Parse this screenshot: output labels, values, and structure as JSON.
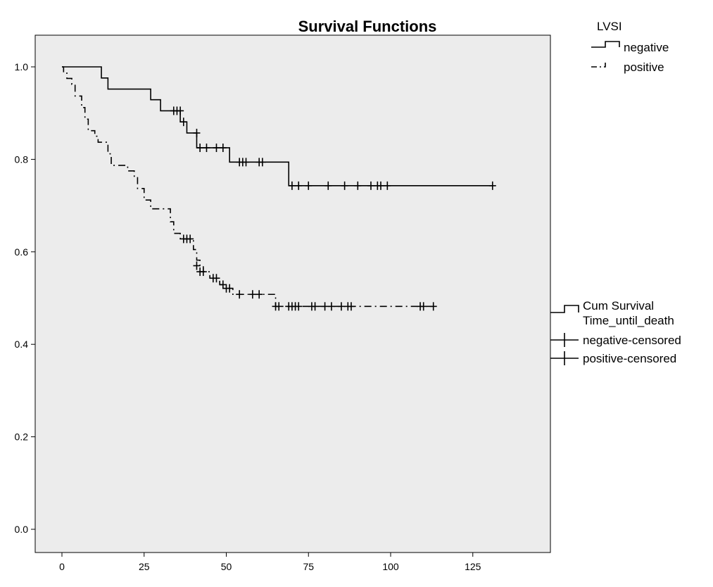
{
  "chart_data": {
    "type": "line",
    "title": "Survival Functions",
    "xlabel": "",
    "ylabel": "",
    "xlim": [
      -10,
      148
    ],
    "ylim": [
      -0.05,
      1.06
    ],
    "xticks": [
      0,
      25,
      50,
      75,
      100,
      125
    ],
    "yticks": [
      0.0,
      0.2,
      0.4,
      0.6,
      0.8,
      1.0
    ],
    "xtick_labels": [
      "0",
      "25",
      "50",
      "75",
      "100",
      "125"
    ],
    "ytick_labels": [
      "0.0",
      "0.2",
      "0.4",
      "0.6",
      "0.8",
      "1.0"
    ],
    "background": "#ececec",
    "grid": false,
    "legend_position": "right",
    "legend": {
      "group_title": "LVSI",
      "groups": [
        "negative",
        "positive"
      ],
      "style_title_line1": "Cum Survival",
      "style_title_line2": "Time_until_death",
      "styles": [
        "negative-censored",
        "positive-censored"
      ]
    },
    "series": [
      {
        "name": "negative",
        "line_style": "solid",
        "color": "#000000",
        "steps": [
          [
            0,
            1.0
          ],
          [
            12,
            0.976
          ],
          [
            14,
            0.952
          ],
          [
            27,
            0.929
          ],
          [
            30,
            0.905
          ],
          [
            36,
            0.881
          ],
          [
            38,
            0.857
          ],
          [
            41,
            0.825
          ],
          [
            51,
            0.794
          ],
          [
            69,
            0.743
          ],
          [
            131,
            0.743
          ]
        ],
        "censored": [
          [
            34,
            0.905
          ],
          [
            35,
            0.905
          ],
          [
            36,
            0.905
          ],
          [
            37,
            0.881
          ],
          [
            41,
            0.857
          ],
          [
            42,
            0.825
          ],
          [
            44,
            0.825
          ],
          [
            47,
            0.825
          ],
          [
            49,
            0.825
          ],
          [
            54,
            0.794
          ],
          [
            55,
            0.794
          ],
          [
            56,
            0.794
          ],
          [
            60,
            0.794
          ],
          [
            61,
            0.794
          ],
          [
            70,
            0.743
          ],
          [
            72,
            0.743
          ],
          [
            75,
            0.743
          ],
          [
            81,
            0.743
          ],
          [
            86,
            0.743
          ],
          [
            90,
            0.743
          ],
          [
            94,
            0.743
          ],
          [
            96,
            0.743
          ],
          [
            97,
            0.743
          ],
          [
            99,
            0.743
          ],
          [
            131,
            0.743
          ]
        ]
      },
      {
        "name": "positive",
        "line_style": "dashed",
        "color": "#000000",
        "steps": [
          [
            0,
            1.0
          ],
          [
            0.5,
            0.988
          ],
          [
            1.5,
            0.975
          ],
          [
            3,
            0.962
          ],
          [
            4,
            0.937
          ],
          [
            6,
            0.912
          ],
          [
            7,
            0.887
          ],
          [
            8,
            0.862
          ],
          [
            10,
            0.85
          ],
          [
            11,
            0.837
          ],
          [
            14,
            0.812
          ],
          [
            15,
            0.787
          ],
          [
            20,
            0.775
          ],
          [
            22,
            0.762
          ],
          [
            23,
            0.737
          ],
          [
            25,
            0.712
          ],
          [
            27,
            0.693
          ],
          [
            33,
            0.665
          ],
          [
            34,
            0.64
          ],
          [
            36,
            0.628
          ],
          [
            40,
            0.605
          ],
          [
            41,
            0.582
          ],
          [
            42,
            0.57
          ],
          [
            43,
            0.557
          ],
          [
            45,
            0.543
          ],
          [
            48,
            0.529
          ],
          [
            49,
            0.521
          ],
          [
            52,
            0.508
          ],
          [
            65,
            0.482
          ],
          [
            113,
            0.482
          ]
        ],
        "censored": [
          [
            37,
            0.628
          ],
          [
            38,
            0.628
          ],
          [
            39,
            0.628
          ],
          [
            41,
            0.57
          ],
          [
            42,
            0.557
          ],
          [
            43,
            0.557
          ],
          [
            46,
            0.543
          ],
          [
            47,
            0.543
          ],
          [
            49,
            0.529
          ],
          [
            50,
            0.521
          ],
          [
            51,
            0.521
          ],
          [
            54,
            0.508
          ],
          [
            58,
            0.508
          ],
          [
            60,
            0.508
          ],
          [
            65,
            0.482
          ],
          [
            66,
            0.482
          ],
          [
            69,
            0.482
          ],
          [
            70,
            0.482
          ],
          [
            71,
            0.482
          ],
          [
            72,
            0.482
          ],
          [
            76,
            0.482
          ],
          [
            77,
            0.482
          ],
          [
            80,
            0.482
          ],
          [
            82,
            0.482
          ],
          [
            85,
            0.482
          ],
          [
            87,
            0.482
          ],
          [
            88,
            0.482
          ],
          [
            109,
            0.482
          ],
          [
            110,
            0.482
          ],
          [
            113,
            0.482
          ]
        ]
      }
    ]
  }
}
